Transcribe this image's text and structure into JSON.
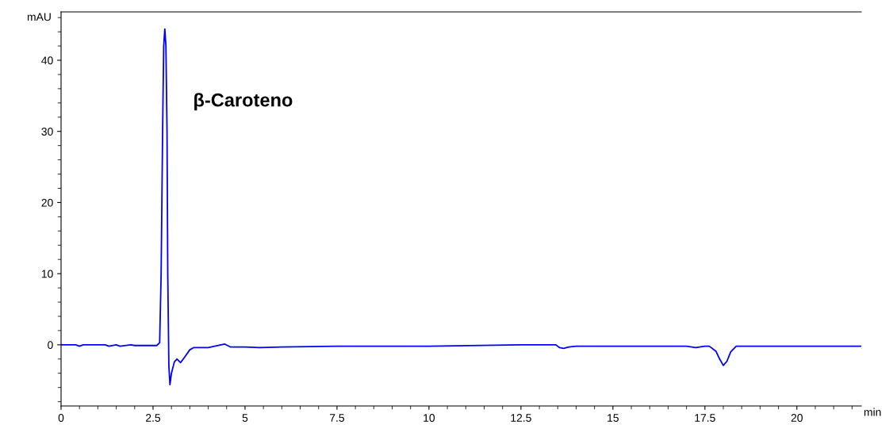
{
  "chart_data": {
    "type": "line",
    "xlabel": "min",
    "ylabel": "mAU",
    "annotations": [
      "β-Caroteno"
    ],
    "series": [
      {
        "color": "#0000ff",
        "x": [
          0,
          0.4,
          0.5,
          0.6,
          1.2,
          1.3,
          1.5,
          1.6,
          1.9,
          2.0,
          2.6,
          2.68,
          2.72,
          2.76,
          2.79,
          2.82,
          2.85,
          2.88,
          2.9,
          2.93,
          2.96,
          3.0,
          3.08,
          3.15,
          3.25,
          3.35,
          3.5,
          3.6,
          4.0,
          4.45,
          4.6,
          5.0,
          5.4,
          6.0,
          7.5,
          10.0,
          12.5,
          13.45,
          13.55,
          13.66,
          13.8,
          14.0,
          15.0,
          16.0,
          17.0,
          17.25,
          17.5,
          17.62,
          17.8,
          17.9,
          18.0,
          18.1,
          18.2,
          18.35,
          18.6,
          20.0,
          21.75
        ],
        "values": [
          0,
          0,
          -0.2,
          0,
          0,
          -0.2,
          0,
          -0.2,
          0,
          -0.1,
          -0.1,
          0.3,
          10,
          30,
          42,
          44.4,
          42,
          30,
          10,
          -3,
          -5.6,
          -4,
          -2.4,
          -2.0,
          -2.5,
          -1.8,
          -0.7,
          -0.4,
          -0.4,
          0.1,
          -0.3,
          -0.3,
          -0.4,
          -0.3,
          -0.2,
          -0.2,
          0,
          0,
          -0.4,
          -0.5,
          -0.3,
          -0.2,
          -0.2,
          -0.2,
          -0.2,
          -0.4,
          -0.2,
          -0.2,
          -0.9,
          -2.0,
          -2.9,
          -2.3,
          -1.0,
          -0.2,
          -0.2,
          -0.2,
          -0.2
        ]
      }
    ],
    "xlim": [
      0,
      21.75
    ],
    "ylim": [
      -8.6,
      46.8
    ],
    "xticks": [
      0,
      {
        "value": 2.5,
        "label": "2.5"
      },
      5,
      {
        "value": 7.5,
        "label": "7.5"
      },
      10,
      {
        "value": 12.5,
        "label": "12.5"
      },
      15,
      {
        "value": 17.5,
        "label": "17.5"
      },
      20
    ],
    "yticks": [
      0,
      10,
      20,
      30,
      40
    ],
    "grid": false,
    "marker": "none",
    "line_style": "solid"
  }
}
